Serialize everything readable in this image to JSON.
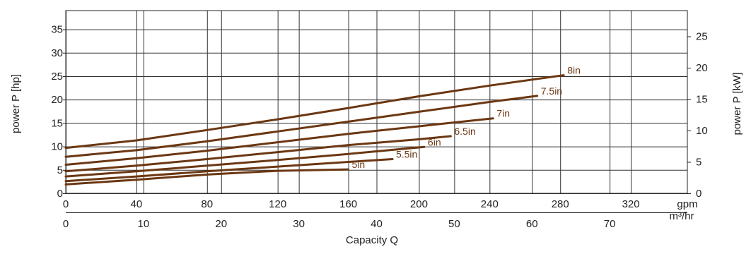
{
  "chart_data": {
    "type": "line",
    "xlabel": "Capacity Q",
    "ylabel_left": "power P [hp]",
    "ylabel_right": "power P [kW]",
    "x_gpm": {
      "unit": "gpm",
      "range": [
        0,
        352
      ],
      "ticks": [
        0,
        40,
        80,
        120,
        160,
        200,
        240,
        280,
        320
      ]
    },
    "x_m3hr": {
      "unit": "m³/hr",
      "range": [
        0,
        80
      ],
      "ticks": [
        0,
        10,
        20,
        30,
        40,
        50,
        60,
        70
      ]
    },
    "y_hp": {
      "range": [
        0,
        39
      ],
      "ticks": [
        0,
        5,
        10,
        15,
        20,
        25,
        30,
        35
      ]
    },
    "y_kw": {
      "range": [
        0,
        29.1
      ],
      "ticks": [
        0,
        5,
        10,
        15,
        20,
        25
      ]
    },
    "grid": true,
    "line_color": "#6b3712",
    "label_color": "#6b3712",
    "series": [
      {
        "name": "8in",
        "x": [
          0,
          40,
          80,
          120,
          160,
          200,
          240,
          282
        ],
        "y": [
          9.7,
          11.3,
          13.5,
          15.8,
          18.2,
          20.7,
          23.0,
          25.2
        ]
      },
      {
        "name": "7.5in",
        "x": [
          0,
          40,
          80,
          120,
          160,
          200,
          240,
          267
        ],
        "y": [
          7.8,
          9.2,
          11.1,
          13.2,
          15.3,
          17.4,
          19.5,
          20.8
        ]
      },
      {
        "name": "7in",
        "x": [
          0,
          40,
          80,
          120,
          160,
          200,
          242
        ],
        "y": [
          6.1,
          7.5,
          9.1,
          10.9,
          12.7,
          14.3,
          16.0
        ]
      },
      {
        "name": "6.5in",
        "x": [
          0,
          40,
          80,
          120,
          160,
          199,
          218
        ],
        "y": [
          4.7,
          5.9,
          7.3,
          8.8,
          10.3,
          11.5,
          12.2
        ]
      },
      {
        "name": "6in",
        "x": [
          0,
          40,
          80,
          120,
          160,
          203
        ],
        "y": [
          3.6,
          4.7,
          5.9,
          7.1,
          8.4,
          9.9
        ]
      },
      {
        "name": "5.5in",
        "x": [
          0,
          40,
          80,
          120,
          160,
          185
        ],
        "y": [
          2.6,
          3.6,
          4.7,
          5.7,
          6.7,
          7.3
        ]
      },
      {
        "name": "5in",
        "x": [
          0,
          40,
          80,
          120,
          160
        ],
        "y": [
          1.9,
          2.9,
          4.0,
          4.8,
          5.1
        ]
      }
    ]
  }
}
